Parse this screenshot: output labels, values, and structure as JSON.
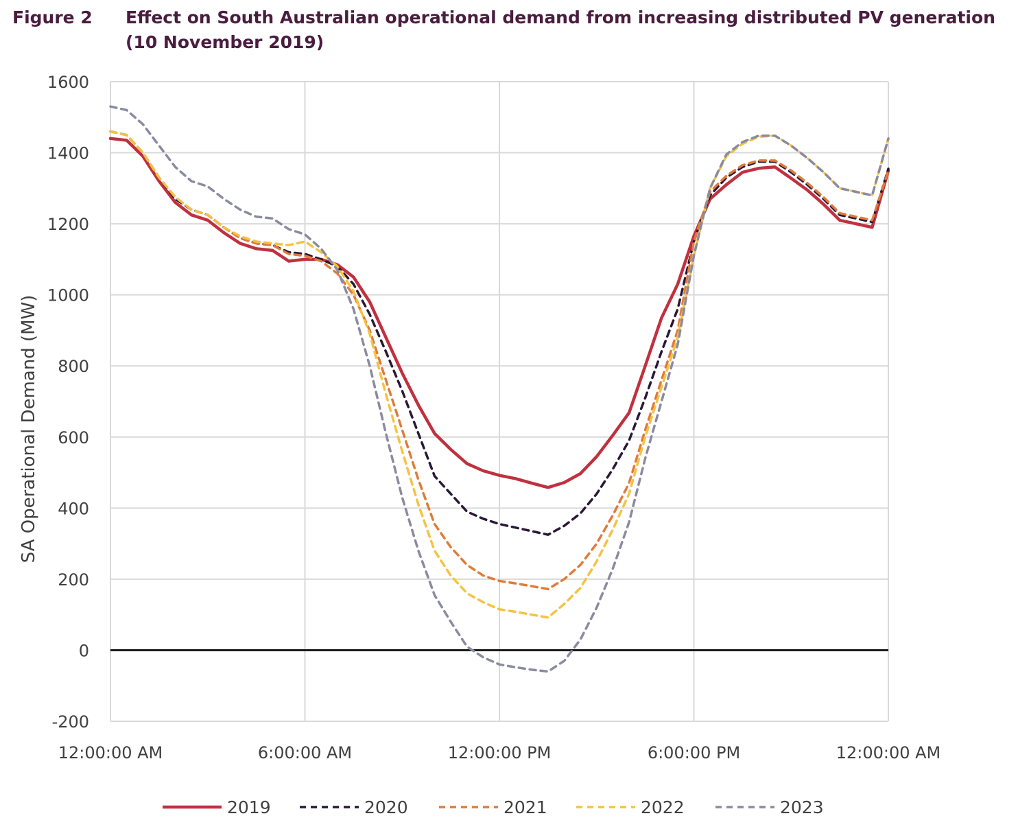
{
  "figure": {
    "label": "Figure 2",
    "title": "Effect on South Australian operational demand from increasing distributed PV generation (10 November 2019)"
  },
  "chart_data": {
    "type": "line",
    "title": "Effect on South Australian operational demand from increasing distributed PV generation (10 November 2019)",
    "xlabel": "",
    "ylabel": "SA Operational Demand (MW)",
    "ylim": [
      -200,
      1600
    ],
    "yticks": [
      -200,
      0,
      200,
      400,
      600,
      800,
      1000,
      1200,
      1400,
      1600
    ],
    "xlim": [
      0,
      24
    ],
    "xticks": [
      0,
      6,
      12,
      18,
      24
    ],
    "xtick_labels": [
      "12:00:00 AM",
      "6:00:00 AM",
      "12:00:00 PM",
      "6:00:00 PM",
      "12:00:00 AM"
    ],
    "grid": true,
    "zero_line": true,
    "legend_position": "bottom",
    "x": [
      0,
      0.5,
      1,
      1.5,
      2,
      2.5,
      3,
      3.5,
      4,
      4.5,
      5,
      5.5,
      6,
      6.5,
      7,
      7.5,
      8,
      8.5,
      9,
      9.5,
      10,
      10.5,
      11,
      11.5,
      12,
      12.5,
      13,
      13.5,
      14,
      14.5,
      15,
      15.5,
      16,
      16.5,
      17,
      17.5,
      18,
      18.5,
      19,
      19.5,
      20,
      20.5,
      21,
      21.5,
      22,
      22.5,
      23,
      23.5,
      24
    ],
    "series": [
      {
        "name": "2019",
        "color": "#c0313f",
        "dash": "solid",
        "values": [
          1440,
          1435,
          1390,
          1320,
          1260,
          1225,
          1210,
          1175,
          1145,
          1130,
          1125,
          1095,
          1100,
          1100,
          1085,
          1050,
          980,
          880,
          780,
          690,
          610,
          565,
          525,
          505,
          492,
          483,
          470,
          458,
          472,
          497,
          545,
          605,
          668,
          800,
          935,
          1030,
          1165,
          1270,
          1310,
          1345,
          1356,
          1360,
          1328,
          1295,
          1255,
          1210,
          1200,
          1190,
          1350
        ]
      },
      {
        "name": "2020",
        "color": "#2a1838",
        "dash": "dashed",
        "values": [
          1460,
          1450,
          1400,
          1330,
          1270,
          1240,
          1225,
          1190,
          1160,
          1145,
          1140,
          1120,
          1115,
          1100,
          1080,
          1030,
          945,
          840,
          730,
          610,
          490,
          440,
          390,
          370,
          355,
          345,
          335,
          325,
          350,
          385,
          440,
          510,
          590,
          710,
          840,
          960,
          1150,
          1280,
          1330,
          1360,
          1375,
          1375,
          1345,
          1310,
          1270,
          1225,
          1215,
          1205,
          1355
        ]
      },
      {
        "name": "2021",
        "color": "#e07b3a",
        "dash": "dashed",
        "values": [
          1460,
          1450,
          1400,
          1330,
          1275,
          1240,
          1225,
          1190,
          1160,
          1145,
          1140,
          1115,
          1110,
          1095,
          1060,
          1000,
          900,
          760,
          620,
          480,
          355,
          290,
          240,
          210,
          195,
          188,
          180,
          172,
          200,
          240,
          300,
          380,
          470,
          620,
          760,
          900,
          1150,
          1290,
          1335,
          1365,
          1378,
          1378,
          1350,
          1315,
          1275,
          1230,
          1220,
          1210,
          1350
        ]
      },
      {
        "name": "2022",
        "color": "#f5c242",
        "dash": "dashed",
        "values": [
          1460,
          1450,
          1400,
          1330,
          1275,
          1240,
          1225,
          1190,
          1165,
          1150,
          1145,
          1140,
          1150,
          1120,
          1080,
          1010,
          890,
          720,
          560,
          410,
          280,
          210,
          160,
          135,
          115,
          108,
          100,
          92,
          130,
          175,
          250,
          340,
          440,
          600,
          740,
          880,
          1110,
          1300,
          1390,
          1425,
          1445,
          1448,
          1420,
          1385,
          1345,
          1300,
          1290,
          1280,
          1440
        ]
      },
      {
        "name": "2023",
        "color": "#8a8aa0",
        "dash": "dashed",
        "values": [
          1530,
          1520,
          1480,
          1420,
          1360,
          1320,
          1305,
          1270,
          1240,
          1220,
          1215,
          1185,
          1170,
          1130,
          1070,
          960,
          800,
          610,
          430,
          280,
          155,
          80,
          10,
          -20,
          -40,
          -48,
          -55,
          -60,
          -30,
          30,
          120,
          230,
          360,
          540,
          700,
          860,
          1110,
          1300,
          1395,
          1430,
          1448,
          1448,
          1420,
          1385,
          1345,
          1300,
          1290,
          1280,
          1440
        ]
      }
    ]
  }
}
